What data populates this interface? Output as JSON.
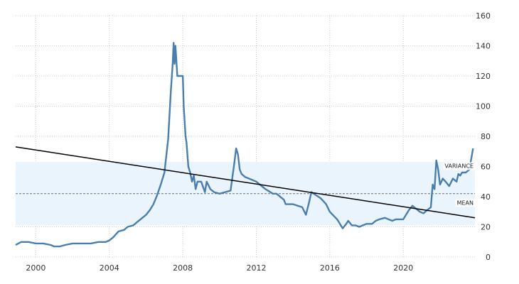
{
  "chart_data": {
    "type": "line",
    "title": "",
    "xlabel": "",
    "ylabel": "",
    "xlim": [
      1998.9,
      2023.9
    ],
    "ylim": [
      0,
      160
    ],
    "x_ticks": [
      2000,
      2004,
      2008,
      2012,
      2016,
      2020
    ],
    "x_tick_labels": [
      "2000",
      "2004",
      "2008",
      "2012",
      "2016",
      "2020"
    ],
    "y_ticks": [
      0,
      20,
      40,
      60,
      80,
      100,
      120,
      140,
      160
    ],
    "y_tick_labels": [
      "0",
      "20",
      "40",
      "60",
      "80",
      "100",
      "120",
      "140",
      "160"
    ],
    "y_axis_side": "right",
    "grid": true,
    "colors": {
      "series": "#4a7ead",
      "trend": "#000000",
      "band": "#eaf4fc",
      "mean": "#6d6d6d",
      "grid": "#cccccc"
    },
    "series": [
      {
        "x": [
          1998.9,
          1999.2,
          1999.6,
          2000.0,
          2000.4,
          2000.8,
          2001.0,
          2001.3,
          2001.6,
          2002.0,
          2002.5,
          2003.0,
          2003.4,
          2003.8,
          2004.0,
          2004.2,
          2004.5,
          2004.8,
          2005.0,
          2005.3,
          2005.5,
          2005.8,
          2006.0,
          2006.2,
          2006.4,
          2006.6,
          2006.8,
          2007.0,
          2007.2,
          2007.35,
          2007.45,
          2007.5,
          2007.55,
          2007.6,
          2007.65,
          2007.7,
          2007.8,
          2008.0,
          2008.05,
          2008.1,
          2008.15,
          2008.2,
          2008.3,
          2008.4,
          2008.5,
          2008.6,
          2008.7,
          2008.8,
          2009.0,
          2009.2,
          2009.3,
          2009.5,
          2009.7,
          2010.0,
          2010.3,
          2010.6,
          2010.8,
          2010.9,
          2011.0,
          2011.1,
          2011.2,
          2011.4,
          2011.6,
          2012.0,
          2012.5,
          2012.9,
          2013.1,
          2013.5,
          2013.6,
          2014.0,
          2014.5,
          2014.7,
          2014.85,
          2015.0,
          2015.5,
          2015.8,
          2016.0,
          2016.4,
          2016.7,
          2016.9,
          2017.0,
          2017.2,
          2017.4,
          2017.6,
          2018.0,
          2018.3,
          2018.5,
          2018.7,
          2019.0,
          2019.4,
          2019.6,
          2020.0,
          2020.3,
          2020.5,
          2020.7,
          2020.9,
          2021.1,
          2021.3,
          2021.5,
          2021.6,
          2021.7,
          2021.8,
          2021.9,
          2022.0,
          2022.15,
          2022.3,
          2022.5,
          2022.7,
          2022.9,
          2023.0,
          2023.1,
          2023.2,
          2023.4,
          2023.6,
          2023.7,
          2023.8
        ],
        "y": [
          8,
          10,
          10,
          9,
          9,
          8,
          7,
          7,
          8,
          9,
          9,
          9,
          10,
          10,
          11,
          13,
          17,
          18,
          20,
          21,
          23,
          26,
          28,
          31,
          35,
          41,
          48,
          56,
          78,
          110,
          128,
          142,
          128,
          140,
          130,
          120,
          120,
          120,
          100,
          90,
          80,
          76,
          60,
          56,
          50,
          54,
          45,
          50,
          50,
          43,
          50,
          45,
          43,
          42,
          43,
          44,
          62,
          72,
          68,
          58,
          55,
          53,
          52,
          50,
          45,
          42,
          42,
          38,
          35,
          35,
          33,
          28,
          35,
          43,
          39,
          35,
          30,
          25,
          19,
          22,
          24,
          21,
          21,
          20,
          22,
          22,
          24,
          25,
          26,
          24,
          25,
          25,
          31,
          34,
          32,
          30,
          29,
          31,
          33,
          48,
          45,
          64,
          58,
          48,
          52,
          50,
          47,
          52,
          50,
          55,
          54,
          56,
          56,
          58,
          65,
          72
        ]
      }
    ],
    "trend_line": {
      "x": [
        1998.9,
        2023.9
      ],
      "y": [
        73,
        26
      ]
    },
    "mean": {
      "value": 42,
      "label": "MEAN"
    },
    "variance_band": {
      "range": [
        21,
        63
      ],
      "label": "VARIANCE"
    }
  }
}
